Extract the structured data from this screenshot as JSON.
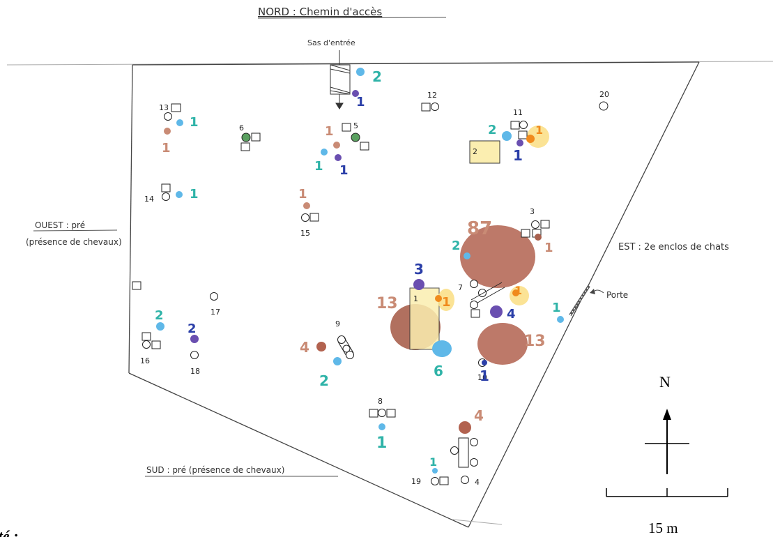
{
  "labels": {
    "north": "NORD : Chemin d'accès",
    "entrance": "Sas d'entrée",
    "west_line1": "OUEST : pré",
    "west_line2": "(présence de chevaux)",
    "east": "EST : 2e enclos de chats",
    "south": "SUD : pré (présence de chevaux)",
    "door": "Porte",
    "compass_n": "N",
    "scale": "15 m",
    "cut_text": "été :"
  },
  "colors": {
    "brown": "#a8604e",
    "brown_light": "#c98b75",
    "teal": "#2fb3a8",
    "light_blue": "#5fb8e8",
    "navy": "#2b3fa8",
    "purple": "#6a4fb0",
    "orange": "#f08a1c",
    "yellow": "#fbeeb0",
    "green": "#5aa060"
  },
  "stations": [
    {
      "id": "1",
      "label": "1"
    },
    {
      "id": "2",
      "label": "2"
    },
    {
      "id": "3",
      "label": "3"
    },
    {
      "id": "4",
      "label": "4"
    },
    {
      "id": "5",
      "label": "5"
    },
    {
      "id": "6",
      "label": "6"
    },
    {
      "id": "7",
      "label": "7"
    },
    {
      "id": "8",
      "label": "8"
    },
    {
      "id": "9",
      "label": "9"
    },
    {
      "id": "10",
      "label": "10"
    },
    {
      "id": "11",
      "label": "11"
    },
    {
      "id": "12",
      "label": "12"
    },
    {
      "id": "13",
      "label": "13"
    },
    {
      "id": "14",
      "label": "14"
    },
    {
      "id": "15",
      "label": "15"
    },
    {
      "id": "16",
      "label": "16"
    },
    {
      "id": "17",
      "label": "17"
    },
    {
      "id": "18",
      "label": "18"
    },
    {
      "id": "19",
      "label": "19"
    },
    {
      "id": "20",
      "label": "20"
    }
  ],
  "counts": [
    {
      "id": "c-87",
      "value": "87",
      "color": "brown"
    },
    {
      "id": "c-13a",
      "value": "13",
      "color": "brown"
    },
    {
      "id": "c-13b",
      "value": "13",
      "color": "brown"
    },
    {
      "id": "c-6",
      "value": "6",
      "color": "teal"
    },
    {
      "id": "c-4a",
      "value": "4",
      "color": "navy"
    },
    {
      "id": "c-4b",
      "value": "4",
      "color": "brown"
    },
    {
      "id": "c-4c",
      "value": "4",
      "color": "brown"
    },
    {
      "id": "c-3",
      "value": "3",
      "color": "navy"
    },
    {
      "id": "c-2a",
      "value": "2",
      "color": "teal"
    },
    {
      "id": "c-2b",
      "value": "2",
      "color": "teal"
    },
    {
      "id": "c-2c",
      "value": "2",
      "color": "teal"
    },
    {
      "id": "c-2d",
      "value": "2",
      "color": "teal"
    },
    {
      "id": "c-2e",
      "value": "2",
      "color": "navy"
    },
    {
      "id": "c-2f",
      "value": "2",
      "color": "teal"
    },
    {
      "id": "c-1a",
      "value": "1",
      "color": "teal"
    },
    {
      "id": "c-1b",
      "value": "1",
      "color": "brown"
    },
    {
      "id": "c-1c",
      "value": "1",
      "color": "teal"
    },
    {
      "id": "c-1d",
      "value": "1",
      "color": "navy"
    },
    {
      "id": "c-1e",
      "value": "1",
      "color": "brown"
    },
    {
      "id": "c-1f",
      "value": "1",
      "color": "teal"
    },
    {
      "id": "c-1g",
      "value": "1",
      "color": "navy"
    },
    {
      "id": "c-1h",
      "value": "1",
      "color": "brown"
    },
    {
      "id": "c-1i",
      "value": "1",
      "color": "navy"
    },
    {
      "id": "c-1j",
      "value": "1",
      "color": "orange"
    },
    {
      "id": "c-1k",
      "value": "1",
      "color": "brown"
    },
    {
      "id": "c-1l",
      "value": "1",
      "color": "orange"
    },
    {
      "id": "c-1m",
      "value": "1",
      "color": "orange"
    },
    {
      "id": "c-1n",
      "value": "1",
      "color": "teal"
    },
    {
      "id": "c-1o",
      "value": "1",
      "color": "navy"
    },
    {
      "id": "c-1p",
      "value": "1",
      "color": "teal"
    },
    {
      "id": "c-1q",
      "value": "1",
      "color": "teal"
    }
  ]
}
